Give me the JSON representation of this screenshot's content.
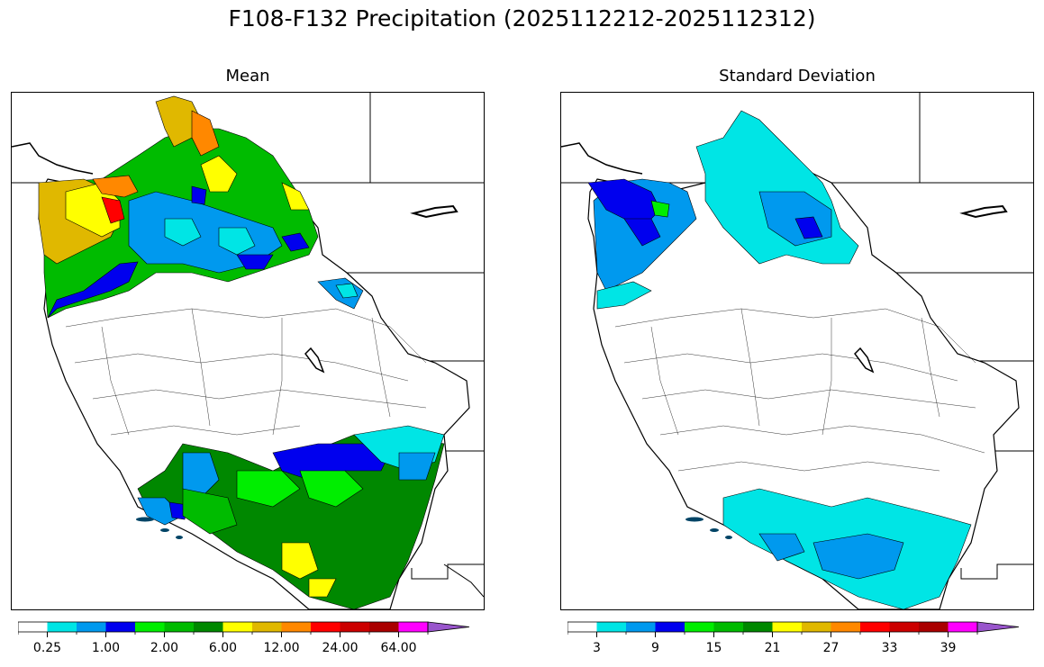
{
  "figure": {
    "title": "F108-F132 Precipitation (2025112212-2025112312)"
  },
  "panels": [
    {
      "id": "mean",
      "title": "Mean",
      "colorbar": {
        "colors": [
          "#ffffff",
          "#00e5e5",
          "#0099ee",
          "#0000ee",
          "#00ee00",
          "#00bb00",
          "#008800",
          "#ffff00",
          "#e0b800",
          "#ff8800",
          "#ff0000",
          "#cc0000",
          "#aa0000",
          "#ff00ff",
          "#9955cc"
        ],
        "tick_labels": [
          "0.25",
          "1.00",
          "2.00",
          "6.00",
          "12.00",
          "24.00",
          "64.00"
        ],
        "extend": "max"
      }
    },
    {
      "id": "stddev",
      "title": "Standard Deviation",
      "colorbar": {
        "colors": [
          "#ffffff",
          "#00e5e5",
          "#0099ee",
          "#0000ee",
          "#00ee00",
          "#00bb00",
          "#008800",
          "#ffff00",
          "#e0b800",
          "#ff8800",
          "#ff0000",
          "#cc0000",
          "#aa0000",
          "#ff00ff",
          "#9955cc"
        ],
        "tick_labels": [
          "3",
          "9",
          "15",
          "21",
          "27",
          "33",
          "39"
        ],
        "extend": "max"
      }
    }
  ]
}
